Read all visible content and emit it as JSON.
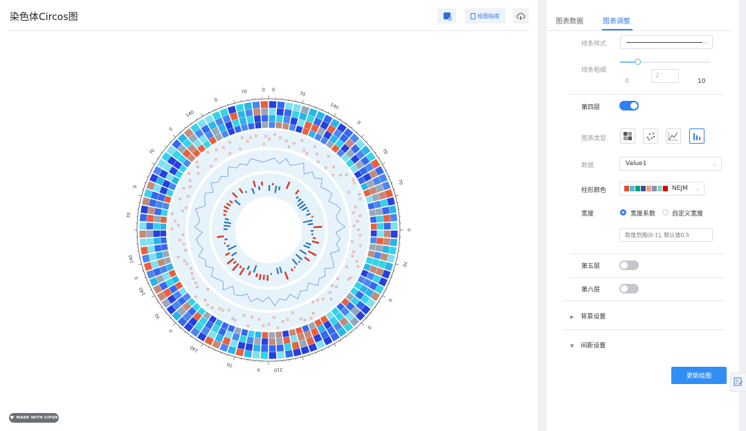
{
  "page": {
    "title": "染色体Circos图"
  },
  "toolbar": {
    "guide_label": "绘图指南"
  },
  "logo": {
    "text": "MADE WITH CIPOX"
  },
  "tabs": [
    {
      "label": "图表数据"
    },
    {
      "label": "图表调整"
    }
  ],
  "line_style": {
    "label": "线条样式"
  },
  "line_width": {
    "label": "线条粗细",
    "min": "0",
    "max": "10",
    "value": "2",
    "fraction": 0.2
  },
  "layer4": {
    "label": "第四层",
    "enabled": true
  },
  "chart_type": {
    "label": "图表类型",
    "options": [
      "heatmap-icon",
      "scatter-icon",
      "line-icon",
      "bar-icon"
    ],
    "selected": "bar-icon"
  },
  "data_field": {
    "label": "数据",
    "value": "Value1"
  },
  "bar_color": {
    "label": "柱形颜色",
    "palette": "NEJM",
    "swatches": [
      "#e64b35",
      "#4dbbd5",
      "#00a087",
      "#3c5488",
      "#f39b7f",
      "#8491b4",
      "#91d1c2",
      "#dc0000"
    ]
  },
  "width": {
    "label": "宽度",
    "option_coef": "宽度系数",
    "option_custom": "自定义宽度",
    "placeholder": "取值范围(0-1], 默认值0.5"
  },
  "layer5": {
    "label": "第五层",
    "enabled": false
  },
  "layer6": {
    "label": "第六层",
    "enabled": false
  },
  "bg_settings": {
    "label": "背景设置"
  },
  "spacing_settings": {
    "label": "间距设置"
  },
  "update_button": {
    "label": "更新绘图"
  },
  "chart_data": {
    "type": "circos",
    "colors": {
      "heatmap": [
        "#34d3e8",
        "#2ab4ea",
        "#4a86f0",
        "#3568f0",
        "#2540e0",
        "#7ee0f0",
        "#98a8b8",
        "#c38a7a",
        "#e8603e"
      ],
      "scatter": "#e57864",
      "line": "#4a8ae0",
      "bar_pos": "#d0412f",
      "bar_neg": "#2a72b8",
      "track_bg": "#e7f3fa"
    },
    "tick_labels": [
      {
        "text": "0",
        "angle": -2
      },
      {
        "text": "0",
        "angle": 2
      },
      {
        "text": "70",
        "angle": 14
      },
      {
        "text": "140",
        "angle": 28
      },
      {
        "text": "0",
        "angle": 40
      },
      {
        "text": "70",
        "angle": 56
      },
      {
        "text": "70",
        "angle": 70
      },
      {
        "text": "0",
        "angle": 90
      },
      {
        "text": "70",
        "angle": 104
      },
      {
        "text": "0",
        "angle": 120
      },
      {
        "text": "0",
        "angle": 134
      },
      {
        "text": "210",
        "angle": 176
      },
      {
        "text": "0",
        "angle": 184
      },
      {
        "text": "70",
        "angle": 196
      },
      {
        "text": "140",
        "angle": 212
      },
      {
        "text": "0",
        "angle": 224
      },
      {
        "text": "70",
        "angle": 232
      },
      {
        "text": "140",
        "angle": 244
      },
      {
        "text": "0",
        "angle": 250
      },
      {
        "text": "140",
        "angle": 258
      },
      {
        "text": "70",
        "angle": 276
      },
      {
        "text": "0",
        "angle": 288
      },
      {
        "text": "70",
        "angle": 304
      },
      {
        "text": "0",
        "angle": 316
      },
      {
        "text": "140",
        "angle": 326
      },
      {
        "text": "0",
        "angle": 338
      },
      {
        "text": "70",
        "angle": 350
      }
    ],
    "line_values": [
      0.5,
      0.64,
      0.35,
      0.72,
      0.41,
      0.58,
      0.83,
      0.3,
      0.66,
      0.47,
      0.75,
      0.38,
      0.55,
      0.69,
      0.33,
      0.61,
      0.79,
      0.44,
      0.52,
      0.87,
      0.36,
      0.63,
      0.48,
      0.71,
      0.29,
      0.57,
      0.82,
      0.4,
      0.67,
      0.53,
      0.74,
      0.31,
      0.6,
      0.45,
      0.78,
      0.39,
      0.65,
      0.5,
      0.85,
      0.34,
      0.62,
      0.46,
      0.73,
      0.37,
      0.59,
      0.68,
      0.32,
      0.8,
      0.43,
      0.56,
      0.7,
      0.35,
      0.64,
      0.49,
      0.77,
      0.41,
      0.58,
      0.66,
      0.3,
      0.72,
      0.45,
      0.61,
      0.83,
      0.38,
      0.54,
      0.69,
      0.33,
      0.75,
      0.47,
      0.6,
      0.36,
      0.79,
      0.51,
      0.63,
      0.42,
      0.7,
      0.55,
      0.4
    ]
  }
}
